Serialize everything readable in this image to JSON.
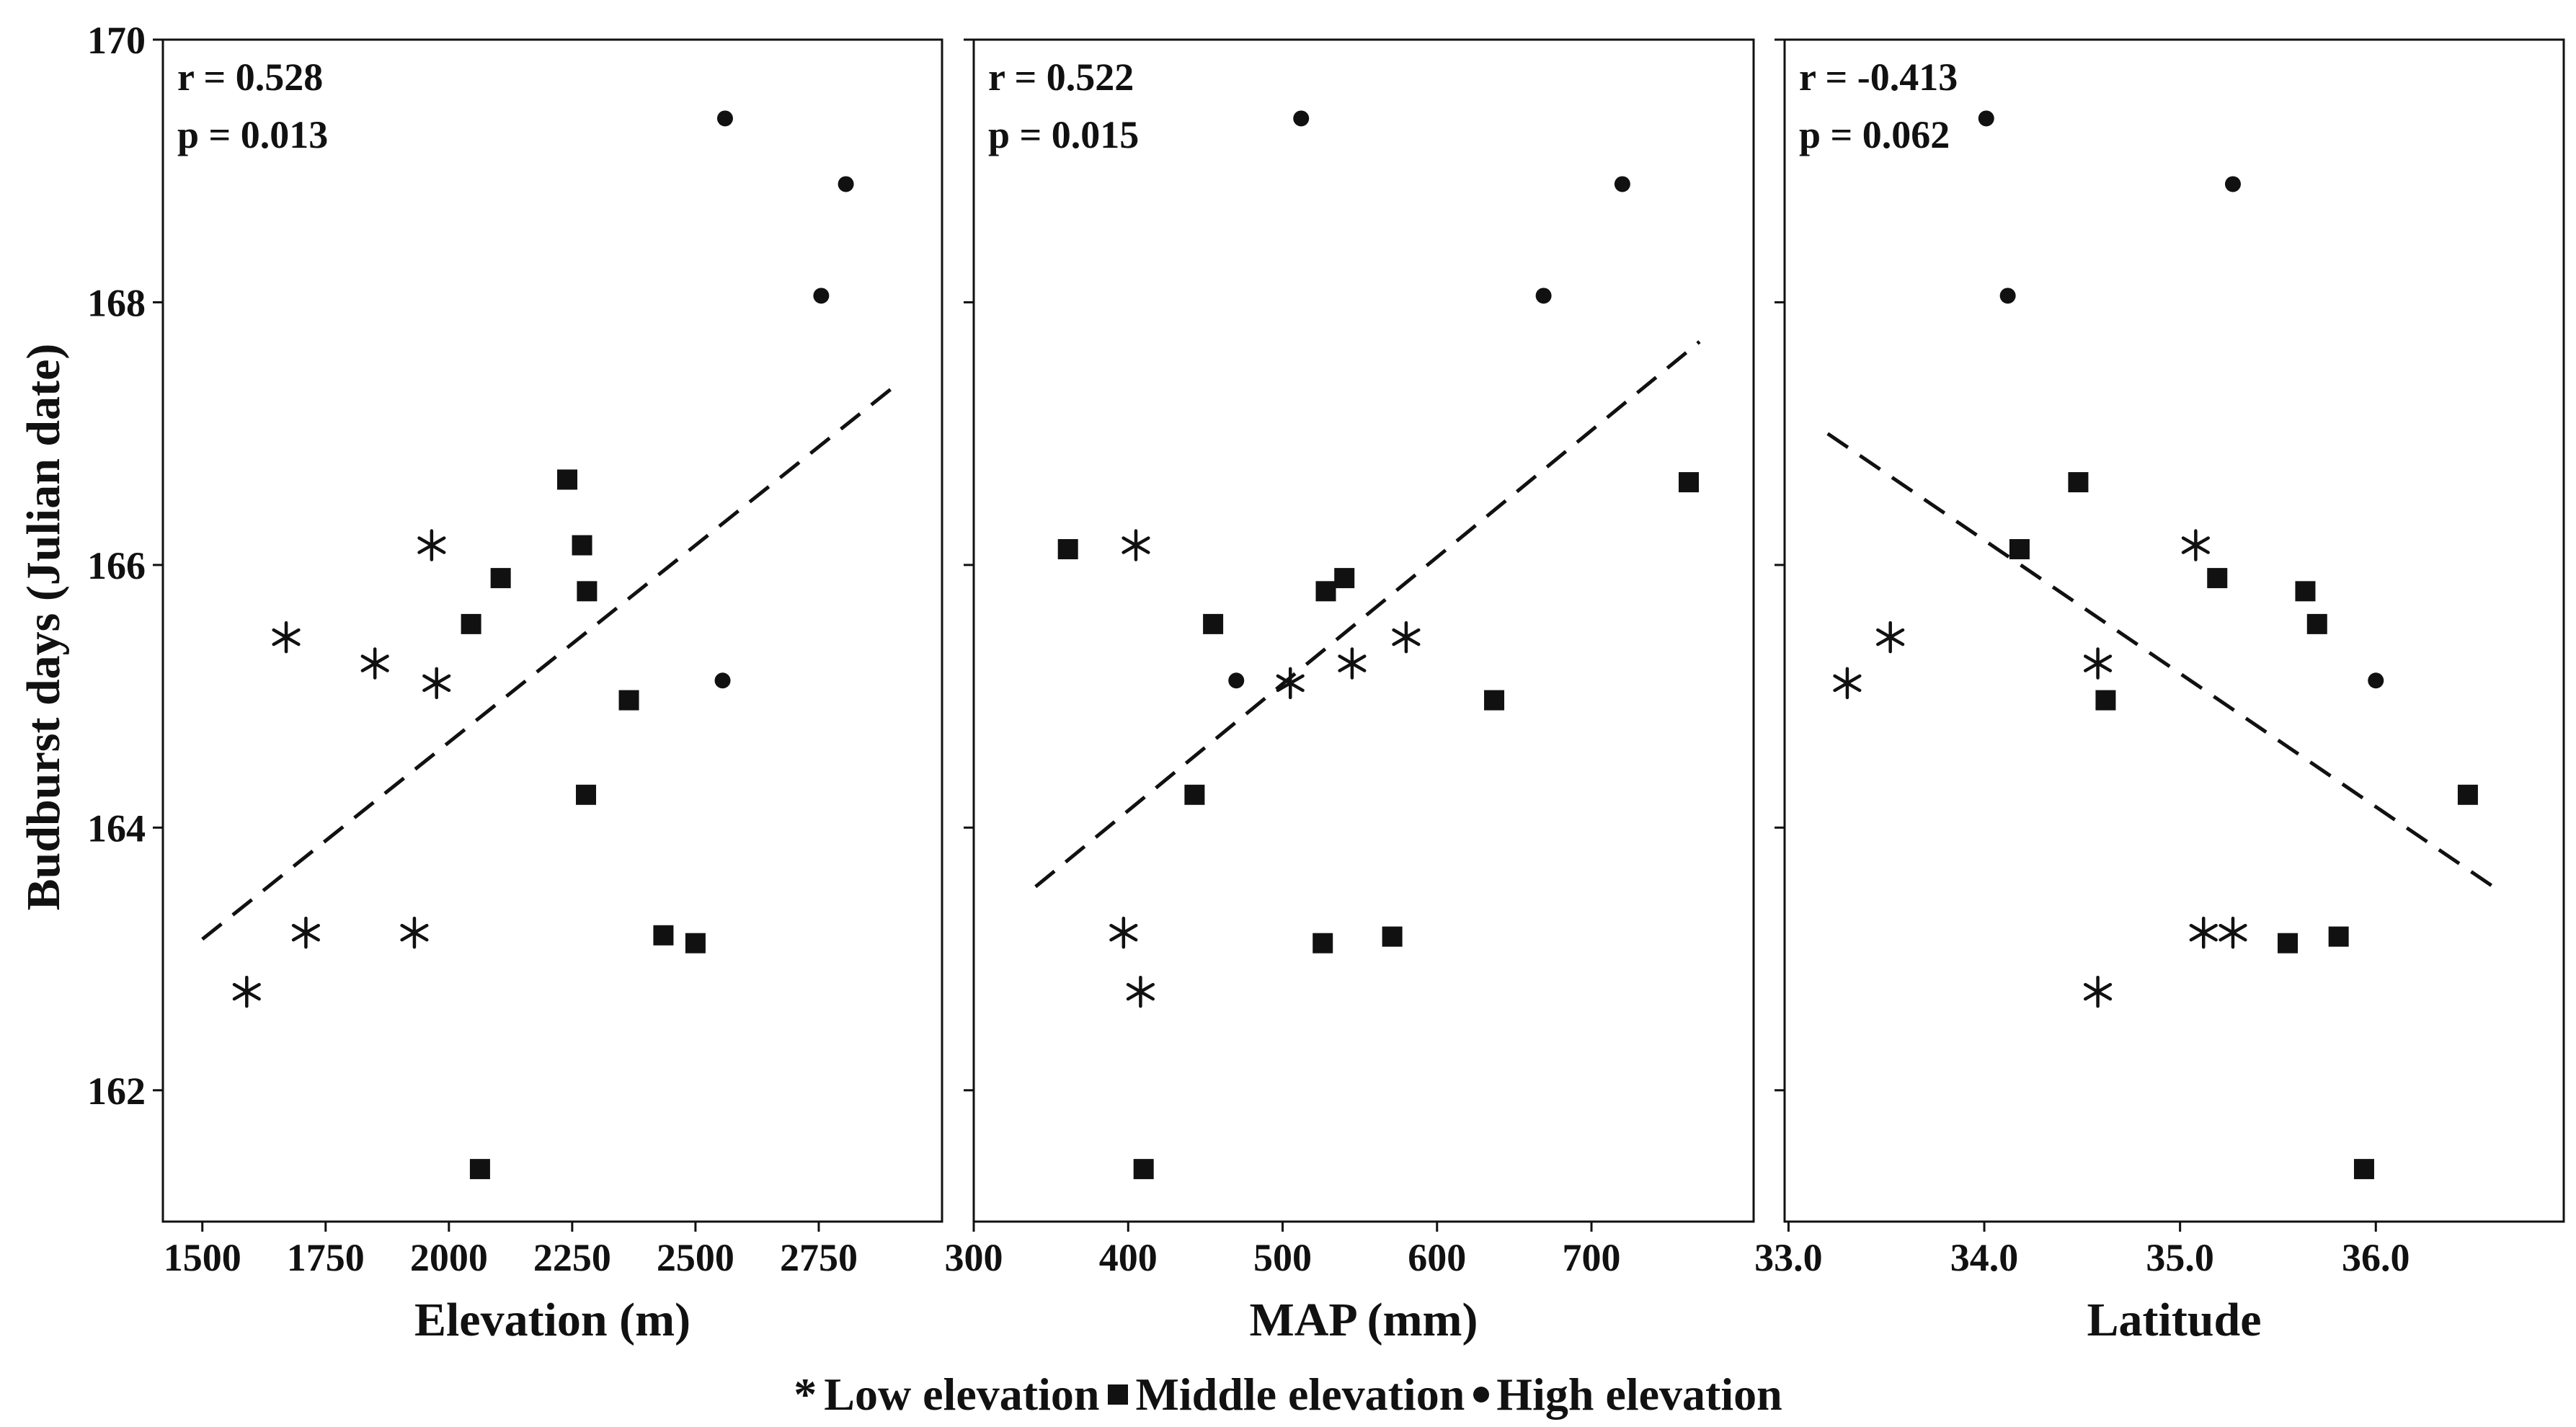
{
  "figure": {
    "ylabel": "Budburst days (Julian date)",
    "y_ticks": [
      "162",
      "164",
      "166",
      "168",
      "170"
    ],
    "ylim": [
      161,
      170
    ],
    "colors": {
      "ink": "#111111",
      "frame": "#111111",
      "background": "#ffffff"
    }
  },
  "legend": {
    "items": [
      {
        "symbol": "star-icon",
        "label": "Low elevation"
      },
      {
        "symbol": "square-icon",
        "label": "Middle elevation"
      },
      {
        "symbol": "circle-icon",
        "label": "High elevation"
      }
    ]
  },
  "chart_data": [
    {
      "type": "scatter",
      "title": "",
      "xlabel": "Elevation (m)",
      "ylabel": "Budburst days (Julian date)",
      "xlim": [
        1420,
        3000
      ],
      "ylim": [
        161,
        170
      ],
      "x_ticks": [
        1500,
        1750,
        2000,
        2250,
        2500,
        2750
      ],
      "x_tick_labels": [
        "1500",
        "1750",
        "2000",
        "2250",
        "2500",
        "2750"
      ],
      "stats": {
        "r": "r = 0.528",
        "p": "p = 0.013"
      },
      "trendline": {
        "x": [
          1500,
          2900
        ],
        "y": [
          163.15,
          167.35
        ],
        "style": "dashed"
      },
      "series": [
        {
          "name": "Low elevation",
          "marker": "star",
          "points": [
            [
              1590,
              162.75
            ],
            [
              1710,
              163.2
            ],
            [
              1930,
              163.2
            ],
            [
              1670,
              165.45
            ],
            [
              1850,
              165.25
            ],
            [
              1975,
              165.1
            ],
            [
              1965,
              166.15
            ]
          ]
        },
        {
          "name": "Middle elevation",
          "marker": "square",
          "points": [
            [
              2063,
              161.4
            ],
            [
              2045,
              165.55
            ],
            [
              2105,
              165.9
            ],
            [
              2240,
              166.65
            ],
            [
              2270,
              166.15
            ],
            [
              2280,
              165.8
            ],
            [
              2365,
              164.97
            ],
            [
              2278,
              164.25
            ],
            [
              2435,
              163.18
            ],
            [
              2500,
              163.12
            ]
          ]
        },
        {
          "name": "High elevation",
          "marker": "circle",
          "points": [
            [
              2560,
              169.4
            ],
            [
              2805,
              168.9
            ],
            [
              2755,
              168.05
            ],
            [
              2555,
              165.12
            ]
          ]
        }
      ]
    },
    {
      "type": "scatter",
      "title": "",
      "xlabel": "MAP (mm)",
      "ylabel": "Budburst days (Julian date)",
      "xlim": [
        300,
        805
      ],
      "ylim": [
        161,
        170
      ],
      "x_ticks": [
        300,
        400,
        500,
        600,
        700
      ],
      "x_tick_labels": [
        "300",
        "400",
        "500",
        "600",
        "700"
      ],
      "stats": {
        "r": "r = 0.522",
        "p": "p = 0.015"
      },
      "trendline": {
        "x": [
          340,
          770
        ],
        "y": [
          163.55,
          167.7
        ],
        "style": "dashed"
      },
      "series": [
        {
          "name": "Low elevation",
          "marker": "star",
          "points": [
            [
              397,
              163.2
            ],
            [
              408,
              162.75
            ],
            [
              405,
              166.15
            ],
            [
              505,
              165.1
            ],
            [
              545,
              165.25
            ],
            [
              580,
              165.45
            ]
          ]
        },
        {
          "name": "Middle elevation",
          "marker": "square",
          "points": [
            [
              361,
              166.12
            ],
            [
              410,
              161.4
            ],
            [
              455,
              165.55
            ],
            [
              443,
              164.25
            ],
            [
              528,
              165.8
            ],
            [
              540,
              165.9
            ],
            [
              526,
              163.12
            ],
            [
              571,
              163.17
            ],
            [
              637,
              164.97
            ],
            [
              763,
              166.63
            ]
          ]
        },
        {
          "name": "High elevation",
          "marker": "circle",
          "points": [
            [
              512,
              169.4
            ],
            [
              720,
              168.9
            ],
            [
              669,
              168.05
            ],
            [
              470,
              165.12
            ]
          ]
        }
      ]
    },
    {
      "type": "scatter",
      "title": "",
      "xlabel": "Latitude",
      "ylabel": "Budburst days (Julian date)",
      "xlim": [
        32.98,
        36.96
      ],
      "ylim": [
        161,
        170
      ],
      "x_ticks": [
        33.0,
        34.0,
        35.0,
        36.0
      ],
      "x_tick_labels": [
        "33.0",
        "34.0",
        "35.0",
        "36.0"
      ],
      "stats": {
        "r": "r = -0.413",
        "p": "p = 0.062"
      },
      "trendline": {
        "x": [
          33.2,
          36.6
        ],
        "y": [
          167.0,
          163.55
        ],
        "style": "dashed"
      },
      "series": [
        {
          "name": "Low elevation",
          "marker": "star",
          "points": [
            [
              33.3,
              165.1
            ],
            [
              33.52,
              165.45
            ],
            [
              34.58,
              165.25
            ],
            [
              34.58,
              162.75
            ],
            [
              35.08,
              166.15
            ],
            [
              35.12,
              163.2
            ],
            [
              35.27,
              163.2
            ]
          ]
        },
        {
          "name": "Middle elevation",
          "marker": "square",
          "points": [
            [
              34.18,
              166.12
            ],
            [
              34.48,
              166.63
            ],
            [
              34.62,
              164.97
            ],
            [
              35.19,
              165.9
            ],
            [
              35.64,
              165.8
            ],
            [
              35.7,
              165.55
            ],
            [
              35.55,
              163.12
            ],
            [
              35.81,
              163.17
            ],
            [
              35.94,
              161.4
            ],
            [
              36.47,
              164.25
            ]
          ]
        },
        {
          "name": "High elevation",
          "marker": "circle",
          "points": [
            [
              34.01,
              169.4
            ],
            [
              35.27,
              168.9
            ],
            [
              34.12,
              168.05
            ],
            [
              36.0,
              165.12
            ]
          ]
        }
      ]
    }
  ]
}
